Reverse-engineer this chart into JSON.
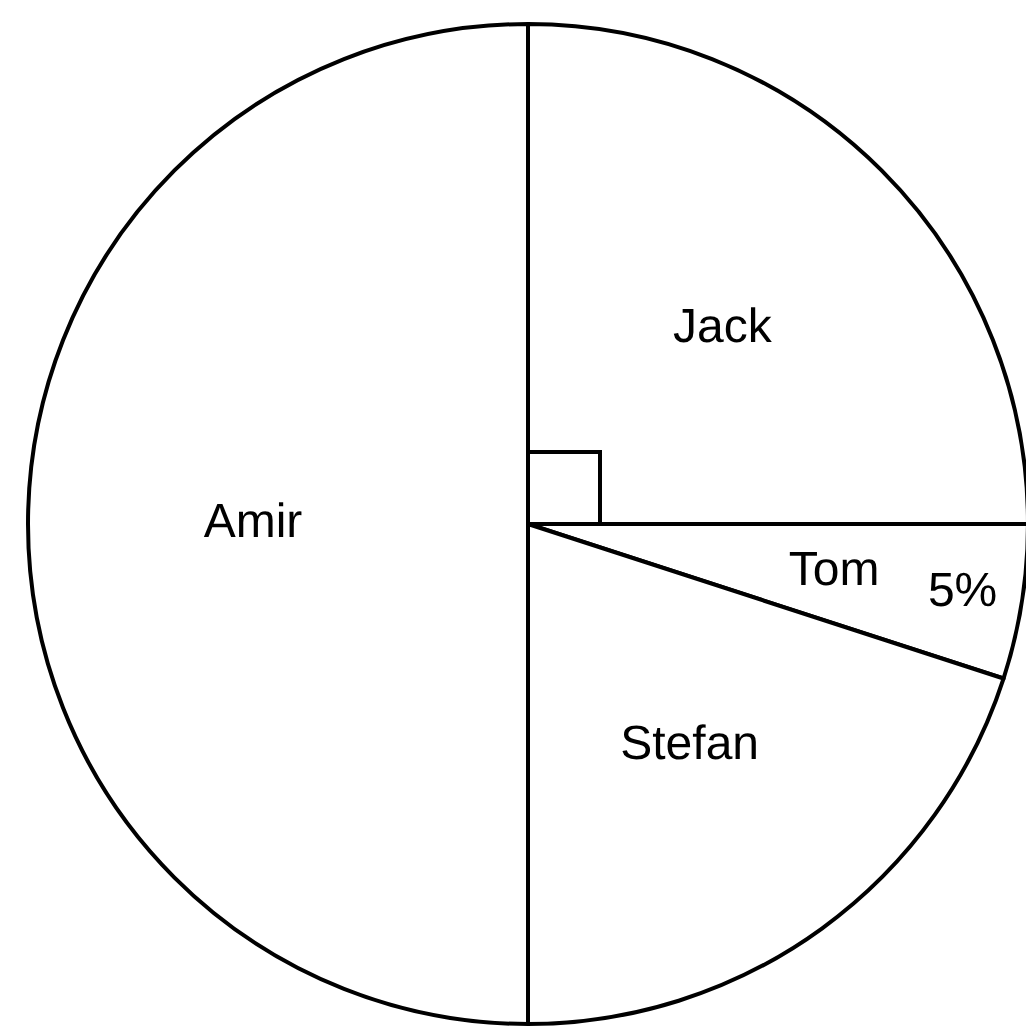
{
  "chart_data": {
    "type": "pie",
    "categories": [
      "Jack",
      "Tom",
      "Stefan",
      "Amir"
    ],
    "values": [
      25,
      5,
      20,
      50
    ],
    "colors": [
      "#ffffff",
      "#ffffff",
      "#ffffff",
      "#ffffff"
    ],
    "value_labels": [
      null,
      "5%",
      null,
      null
    ]
  }
}
